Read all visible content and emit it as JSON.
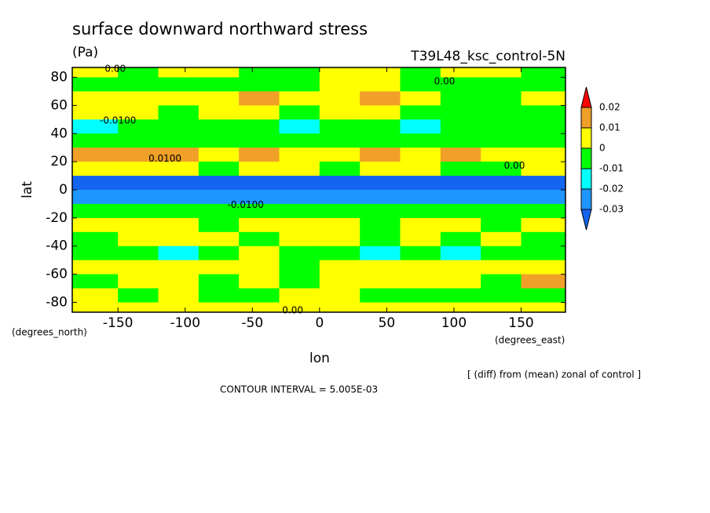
{
  "chart_data": {
    "type": "contour",
    "title": "surface downward northward stress",
    "units": "(Pa)",
    "subtitle": "T39L48_ksc_control-5N",
    "xlabel": "lon",
    "ylabel": "lat",
    "xunit": "(degrees_east)",
    "yunit": "(degrees_north)",
    "note": "[ (diff) from (mean) zonal of control ]",
    "contour_interval": "CONTOUR INTERVAL = 5.005E-03",
    "xlim": [
      -184,
      183
    ],
    "ylim": [
      -87,
      87
    ],
    "xticks": [
      -150,
      -100,
      -50,
      0,
      50,
      100,
      150
    ],
    "yticks": [
      -80,
      -60,
      -40,
      -20,
      0,
      20,
      40,
      60,
      80
    ],
    "levels": [
      -0.03,
      -0.02,
      -0.01,
      0,
      0.01,
      0.02
    ],
    "colors": [
      "#1464f0",
      "#1e96ff",
      "#00ffff",
      "#00ff00",
      "#ffff00",
      "#f0a028",
      "#ff0000"
    ],
    "x": [
      -165,
      -135,
      -105,
      -75,
      -45,
      -15,
      15,
      45,
      75,
      105,
      135,
      165
    ],
    "y": [
      85,
      75,
      65,
      55,
      45,
      35,
      25,
      15,
      5,
      -5,
      -15,
      -25,
      -35,
      -45,
      -55,
      -65,
      -75,
      -85
    ],
    "z": [
      [
        0.001,
        -0.002,
        0.001,
        0.002,
        -0.002,
        -0.002,
        0.002,
        0.002,
        -0.002,
        0.002,
        0.003,
        -0.002
      ],
      [
        -0.003,
        -0.003,
        -0.003,
        -0.004,
        -0.004,
        -0.003,
        0.003,
        0.003,
        -0.003,
        -0.003,
        -0.003,
        -0.004
      ],
      [
        0.004,
        0.005,
        0.004,
        0.004,
        0.012,
        0.004,
        0.006,
        0.012,
        0.004,
        -0.003,
        -0.004,
        0.003
      ],
      [
        0.003,
        0.004,
        -0.004,
        0.004,
        0.003,
        -0.004,
        0.003,
        0.004,
        -0.005,
        -0.004,
        -0.005,
        -0.004
      ],
      [
        -0.012,
        -0.006,
        -0.008,
        -0.005,
        -0.006,
        -0.013,
        -0.005,
        -0.008,
        -0.014,
        -0.006,
        -0.005,
        -0.006
      ],
      [
        -0.004,
        -0.003,
        -0.004,
        -0.003,
        -0.003,
        -0.004,
        -0.004,
        -0.003,
        -0.005,
        -0.003,
        -0.004,
        -0.004
      ],
      [
        0.012,
        0.013,
        0.012,
        0.008,
        0.012,
        0.006,
        0.008,
        0.011,
        0.006,
        0.012,
        0.008,
        0.007
      ],
      [
        0.002,
        0.003,
        0.002,
        -0.002,
        0.002,
        0.001,
        -0.002,
        0.002,
        0.001,
        -0.003,
        -0.002,
        0.001
      ],
      [
        -0.033,
        -0.034,
        -0.033,
        -0.032,
        -0.034,
        -0.033,
        -0.033,
        -0.034,
        -0.032,
        -0.033,
        -0.034,
        -0.033
      ],
      [
        -0.022,
        -0.023,
        -0.022,
        -0.024,
        -0.022,
        -0.023,
        -0.022,
        -0.023,
        -0.024,
        -0.022,
        -0.023,
        -0.022
      ],
      [
        -0.006,
        -0.005,
        -0.007,
        -0.004,
        -0.006,
        -0.005,
        -0.004,
        -0.006,
        -0.005,
        -0.004,
        -0.006,
        -0.005
      ],
      [
        0.004,
        0.003,
        0.004,
        -0.002,
        0.004,
        0.003,
        0.004,
        -0.003,
        0.004,
        0.003,
        -0.002,
        0.004
      ],
      [
        -0.003,
        0.003,
        0.004,
        0.003,
        -0.004,
        0.004,
        0.003,
        -0.004,
        0.004,
        -0.003,
        0.003,
        -0.004
      ],
      [
        -0.004,
        -0.003,
        -0.012,
        -0.004,
        0.008,
        -0.003,
        -0.004,
        -0.011,
        -0.004,
        -0.012,
        -0.004,
        -0.003
      ],
      [
        0.004,
        0.003,
        0.004,
        0.003,
        0.004,
        -0.003,
        0.004,
        0.003,
        0.004,
        0.003,
        0.004,
        0.003
      ],
      [
        -0.003,
        0.004,
        0.006,
        -0.003,
        0.003,
        -0.004,
        0.004,
        0.003,
        0.004,
        0.005,
        -0.003,
        0.011
      ],
      [
        0.003,
        -0.003,
        0.004,
        -0.004,
        -0.003,
        0.003,
        0.004,
        -0.003,
        -0.004,
        -0.003,
        -0.004,
        -0.003
      ],
      [
        0.004,
        0.003,
        0.004,
        0.003,
        0.004,
        0.003,
        0.004,
        0.003,
        0.004,
        0.003,
        0.004,
        0.003
      ]
    ],
    "annotations": [
      {
        "text": "0.00",
        "x": -152,
        "y": 86
      },
      {
        "text": "0.00",
        "x": 93,
        "y": 77
      },
      {
        "text": "-0.0100",
        "x": -150,
        "y": 49
      },
      {
        "text": "0.0100",
        "x": -115,
        "y": 22
      },
      {
        "text": "0.00",
        "x": 145,
        "y": 17
      },
      {
        "text": "-0.0100",
        "x": -55,
        "y": -11
      },
      {
        "text": "0.00",
        "x": -20,
        "y": -86
      }
    ]
  }
}
